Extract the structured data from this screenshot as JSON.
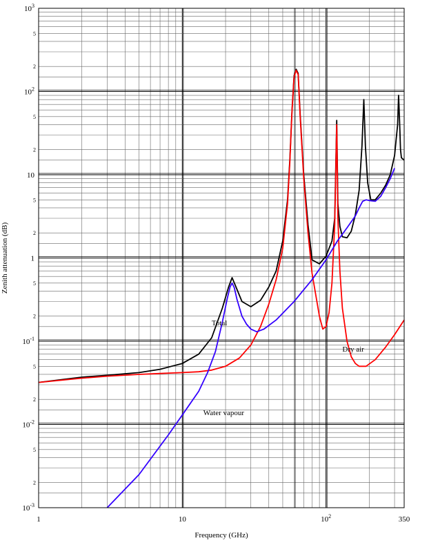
{
  "chart_data": {
    "type": "line",
    "title": "",
    "xlabel": "Frequency (GHz)",
    "ylabel": "Zenith attenuation (dB)",
    "x_scale": "log",
    "y_scale": "log",
    "xlim": [
      1,
      350
    ],
    "ylim": [
      0.001,
      1000
    ],
    "grid": true,
    "legend": "none",
    "x_ticks": [
      {
        "value": 1,
        "label": "1"
      },
      {
        "value": 10,
        "label": "10"
      },
      {
        "value": 100,
        "label": "10",
        "sup": "2"
      },
      {
        "value": 350,
        "label": "350"
      }
    ],
    "y_ticks": [
      {
        "value": 0.001,
        "label": "10",
        "sup": "-3"
      },
      {
        "value": 0.01,
        "label": "10",
        "sup": "-2"
      },
      {
        "value": 0.1,
        "label": "10",
        "sup": "-1"
      },
      {
        "value": 1,
        "label": "1",
        "sup": ""
      },
      {
        "value": 10,
        "label": "10",
        "sup": ""
      },
      {
        "value": 100,
        "label": "10",
        "sup": "2"
      },
      {
        "value": 1000,
        "label": "10",
        "sup": "3"
      }
    ],
    "y_minor_labels": [
      "2",
      "5"
    ],
    "annotations": [
      {
        "text": "Total",
        "x": 16,
        "y": 0.155
      },
      {
        "text": "Dry air",
        "x": 130,
        "y": 0.075
      },
      {
        "text": "Water vapour",
        "x": 14,
        "y": 0.013
      }
    ],
    "series": [
      {
        "color": "#000000",
        "x": [
          1,
          2,
          3,
          5,
          7,
          10,
          13,
          16,
          19,
          21,
          22.2,
          23.5,
          26,
          30,
          35,
          40,
          45,
          50,
          54,
          56,
          58,
          60,
          62,
          64,
          66,
          70,
          75,
          80,
          90,
          100,
          110,
          115,
          118.75,
          121,
          125,
          130,
          140,
          150,
          160,
          170,
          178,
          183.3,
          188,
          195,
          205,
          220,
          240,
          260,
          280,
          300,
          315,
          320,
          325,
          330,
          335,
          350
        ],
        "y": [
          0.032,
          0.037,
          0.039,
          0.042,
          0.046,
          0.054,
          0.07,
          0.11,
          0.25,
          0.45,
          0.58,
          0.46,
          0.3,
          0.26,
          0.31,
          0.45,
          0.7,
          1.6,
          5,
          15,
          60,
          155,
          185,
          165,
          55,
          10,
          2.5,
          0.95,
          0.85,
          1.05,
          1.6,
          3,
          45,
          4.5,
          2.4,
          1.8,
          1.75,
          2.1,
          3.3,
          6.5,
          22,
          80,
          22,
          8,
          5,
          5,
          6,
          7.5,
          10,
          17,
          40,
          90,
          45,
          20,
          16,
          15
        ]
      },
      {
        "color": "#ff0000",
        "x": [
          1,
          2,
          3,
          5,
          7,
          10,
          13,
          16,
          20,
          25,
          30,
          35,
          40,
          45,
          50,
          54,
          56,
          58,
          60,
          62,
          64,
          66,
          70,
          75,
          80,
          90,
          95,
          100,
          105,
          110,
          115,
          118.75,
          121,
          125,
          130,
          140,
          150,
          160,
          170,
          190,
          220,
          260,
          300,
          350
        ],
        "y": [
          0.032,
          0.036,
          0.038,
          0.04,
          0.041,
          0.042,
          0.043,
          0.045,
          0.05,
          0.063,
          0.09,
          0.15,
          0.28,
          0.55,
          1.3,
          4.5,
          14,
          58,
          150,
          180,
          160,
          52,
          9,
          2,
          0.65,
          0.2,
          0.14,
          0.15,
          0.22,
          0.5,
          2.5,
          40,
          3,
          0.7,
          0.25,
          0.1,
          0.065,
          0.054,
          0.05,
          0.05,
          0.06,
          0.085,
          0.12,
          0.18
        ]
      },
      {
        "color": "#3300ff",
        "x": [
          3,
          5,
          8,
          10,
          13,
          15,
          17,
          19,
          20.5,
          21.5,
          22.2,
          23,
          24,
          26,
          28,
          30,
          33,
          37,
          45,
          60,
          80,
          100,
          120,
          140,
          160,
          170,
          180,
          190,
          200,
          220,
          240,
          260,
          280,
          300
        ],
        "y": [
          0.001,
          0.0025,
          0.0075,
          0.013,
          0.025,
          0.042,
          0.075,
          0.17,
          0.32,
          0.45,
          0.5,
          0.44,
          0.32,
          0.2,
          0.16,
          0.14,
          0.13,
          0.14,
          0.18,
          0.3,
          0.55,
          0.95,
          1.6,
          2.3,
          3.2,
          4,
          4.8,
          5,
          4.9,
          4.8,
          5.5,
          7,
          9,
          12
        ]
      }
    ]
  }
}
